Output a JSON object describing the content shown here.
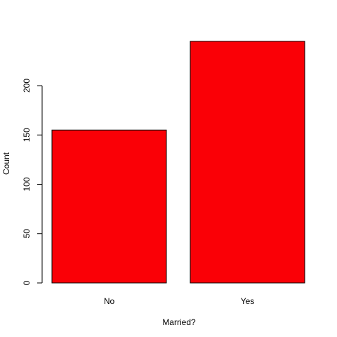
{
  "chart_data": {
    "type": "bar",
    "title": "",
    "xlabel": "Married?",
    "ylabel": "Count",
    "categories": [
      "No",
      "Yes"
    ],
    "values": [
      155,
      245
    ],
    "ylim": [
      0,
      245
    ],
    "yticks": [
      0,
      50,
      100,
      150,
      200
    ],
    "grid": false,
    "bar_color": "#FA0006",
    "bar_border_color": "#000000"
  }
}
